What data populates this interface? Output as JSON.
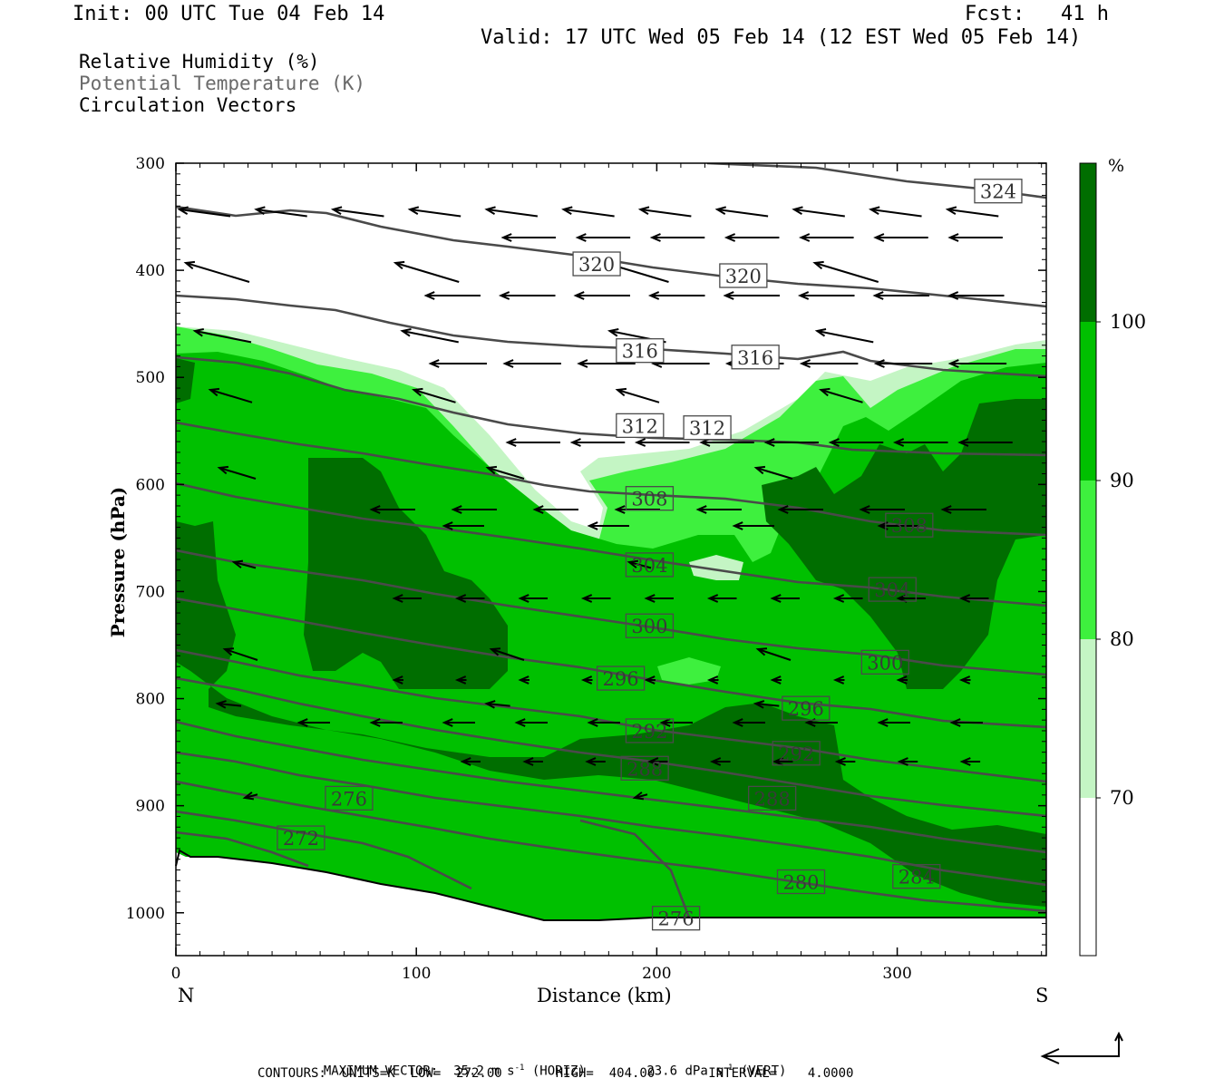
{
  "header": {
    "init": "Init: 00 UTC Tue 04 Feb 14",
    "fcst": "Fcst:   41 h",
    "valid": "Valid: 17 UTC Wed 05 Feb 14 (12 EST Wed 05 Feb 14)"
  },
  "legend": {
    "rh": "Relative Humidity (%)",
    "theta": "Potential Temperature (K)",
    "vectors": "Circulation Vectors"
  },
  "chart_data": {
    "type": "heatmap",
    "xlabel": "Distance (km)",
    "ylabel": "Pressure (hPa)",
    "xlim": [
      0,
      362
    ],
    "ylim": [
      1040,
      300
    ],
    "x_ticks": [
      0,
      100,
      200,
      300
    ],
    "y_ticks": [
      300,
      400,
      500,
      600,
      700,
      800,
      900,
      1000
    ],
    "x_end_labels": {
      "left": "N",
      "right": "S"
    },
    "fill_field": "Relative Humidity (%)",
    "colorbar": {
      "unit": "%",
      "levels": [
        70,
        80,
        90,
        100
      ],
      "colors": [
        "#ffffff",
        "#c4f5c4",
        "#3ef03e",
        "#00c000",
        "#006e00"
      ]
    },
    "contour_field": "Potential Temperature (K)",
    "contour_labels": [
      {
        "value": "324",
        "x": 342,
        "p": 326
      },
      {
        "value": "320",
        "x": 175,
        "p": 394
      },
      {
        "value": "320",
        "x": 236,
        "p": 405
      },
      {
        "value": "316",
        "x": 193,
        "p": 475
      },
      {
        "value": "316",
        "x": 241,
        "p": 481
      },
      {
        "value": "312",
        "x": 193,
        "p": 545
      },
      {
        "value": "312",
        "x": 221,
        "p": 547
      },
      {
        "value": "308",
        "x": 197,
        "p": 613
      },
      {
        "value": "308",
        "x": 305,
        "p": 638
      },
      {
        "value": "304",
        "x": 197,
        "p": 675
      },
      {
        "value": "304",
        "x": 298,
        "p": 698
      },
      {
        "value": "300",
        "x": 197,
        "p": 732
      },
      {
        "value": "300",
        "x": 295,
        "p": 766
      },
      {
        "value": "296",
        "x": 185,
        "p": 781
      },
      {
        "value": "296",
        "x": 262,
        "p": 809
      },
      {
        "value": "292",
        "x": 197,
        "p": 830
      },
      {
        "value": "292",
        "x": 258,
        "p": 851
      },
      {
        "value": "288",
        "x": 195,
        "p": 865
      },
      {
        "value": "288",
        "x": 248,
        "p": 893
      },
      {
        "value": "276",
        "x": 72,
        "p": 893
      },
      {
        "value": "272",
        "x": 52,
        "p": 930
      },
      {
        "value": "280",
        "x": 260,
        "p": 971
      },
      {
        "value": "284",
        "x": 308,
        "p": 966
      },
      {
        "value": "276",
        "x": 208,
        "p": 1005
      }
    ],
    "footer": {
      "max_vector_label": "MAXIMUM VECTOR:",
      "horiz_value": "35.2 m s",
      "horiz_exp": "-1",
      "horiz_tag": " (HORIZ)",
      "vert_value": "23.6 dPa s",
      "vert_exp": "-1",
      "vert_tag": " (VERT)",
      "contours": "CONTOURS:  UNITS=K  LOW=  272.00       HIGH=  404.00       INTERVAL=    4.0000"
    }
  }
}
